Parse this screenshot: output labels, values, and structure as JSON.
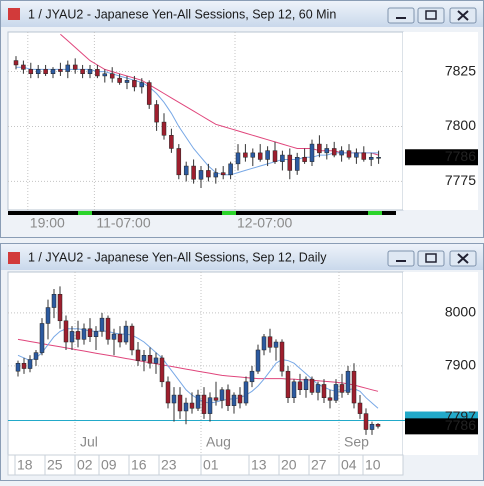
{
  "chart_data": [
    {
      "type": "candlestick",
      "title": "1 / JYAU2 - Japanese Yen-All Sessions, Sep 12, 60 Min",
      "categories": [
        null,
        null,
        "19:00",
        null,
        null,
        null,
        null,
        null,
        null,
        null,
        null,
        "11-07:00",
        null,
        null,
        null,
        null,
        null,
        null,
        null,
        null,
        null,
        null,
        null,
        null,
        null,
        null,
        null,
        null,
        null,
        null,
        "12-07:00",
        null,
        null,
        null,
        null,
        null,
        null,
        null,
        null,
        null,
        null,
        null,
        null,
        null,
        null,
        null,
        null,
        null,
        null,
        null
      ],
      "open": [
        7830,
        7828,
        7826,
        7824,
        7826,
        7824,
        7826,
        7825,
        7828,
        7826,
        7824,
        7826,
        7823,
        7824,
        7822,
        7820,
        7821,
        7818,
        7820,
        7810,
        7802,
        7796,
        7790,
        7778,
        7782,
        7776,
        7780,
        7777,
        7779,
        7778,
        7783,
        7788,
        7786,
        7788,
        7785,
        7789,
        7784,
        7787,
        7780,
        7786,
        7784,
        7792,
        7788,
        7790,
        7787,
        7789,
        7786,
        7788,
        7785,
        7786
      ],
      "high": [
        7832,
        7830,
        7829,
        7828,
        7828,
        7827,
        7829,
        7830,
        7831,
        7828,
        7828,
        7828,
        7826,
        7827,
        7824,
        7823,
        7823,
        7822,
        7821,
        7812,
        7806,
        7799,
        7792,
        7784,
        7785,
        7782,
        7783,
        7781,
        7782,
        7784,
        7792,
        7792,
        7790,
        7792,
        7791,
        7793,
        7789,
        7790,
        7788,
        7790,
        7794,
        7796,
        7792,
        7793,
        7791,
        7792,
        7790,
        7791,
        7788,
        7789
      ],
      "low": [
        7826,
        7824,
        7822,
        7822,
        7823,
        7822,
        7823,
        7822,
        7824,
        7822,
        7822,
        7822,
        7820,
        7820,
        7819,
        7817,
        7816,
        7815,
        7808,
        7798,
        7794,
        7788,
        7776,
        7775,
        7774,
        7772,
        7775,
        7774,
        7776,
        7776,
        7780,
        7784,
        7782,
        7784,
        7782,
        7783,
        7780,
        7776,
        7778,
        7783,
        7782,
        7786,
        7785,
        7786,
        7784,
        7785,
        7783,
        7784,
        7782,
        7783
      ],
      "close": [
        7828,
        7826,
        7824,
        7826,
        7824,
        7826,
        7825,
        7828,
        7826,
        7824,
        7826,
        7823,
        7824,
        7822,
        7820,
        7821,
        7818,
        7820,
        7810,
        7802,
        7796,
        7790,
        7778,
        7782,
        7776,
        7780,
        7777,
        7779,
        7778,
        7783,
        7788,
        7786,
        7788,
        7785,
        7789,
        7784,
        7787,
        7780,
        7786,
        7784,
        7792,
        7788,
        7790,
        7787,
        7789,
        7786,
        7788,
        7785,
        7786,
        7786
      ],
      "up_color": "#2c5aa0",
      "down_color": "#9e1f2e",
      "series": [
        {
          "color": "#e0467c",
          "values": [
            null,
            null,
            null,
            null,
            null,
            null,
            7842,
            7839,
            7836,
            7833,
            7830,
            7828,
            7826,
            7825,
            7824,
            7823,
            7822,
            7821,
            7819,
            7817,
            7815,
            7813,
            7811,
            7809,
            7807,
            7805,
            7803,
            7801,
            7800,
            7799,
            7798,
            7797,
            7796,
            7795,
            7794,
            7793,
            7792,
            7791,
            7790,
            7790,
            7790,
            7789,
            7789,
            7789,
            7788,
            7788,
            7788,
            7788,
            7788,
            7787
          ]
        },
        {
          "color": "#78a8e6",
          "values": [
            7827,
            7827,
            7826,
            7826,
            7826,
            7826,
            7826,
            7826,
            7826,
            7826,
            7826,
            7825,
            7825,
            7824,
            7823,
            7822,
            7821,
            7820,
            7818,
            7815,
            7811,
            7806,
            7800,
            7795,
            7790,
            7786,
            7782,
            7779,
            7778,
            7778,
            7779,
            7780,
            7781,
            7782,
            7783,
            7784,
            7785,
            7785,
            7785,
            7786,
            7786,
            7787,
            7787,
            7788,
            7788,
            7788,
            7788,
            7788,
            7788,
            7788
          ]
        }
      ],
      "ylim": [
        7762,
        7843
      ],
      "yticks": [
        7775,
        7800,
        7825
      ],
      "grid": true,
      "last_price": 7786
    },
    {
      "type": "candlestick",
      "title": "1 / JYAU2 - Japanese Yen-All Sessions, Sep 12, Daily",
      "categories": [
        "18",
        null,
        null,
        null,
        null,
        "25",
        null,
        null,
        null,
        null,
        "02",
        null,
        null,
        null,
        "09",
        null,
        null,
        null,
        null,
        "16",
        null,
        null,
        null,
        null,
        "23",
        null,
        null,
        null,
        null,
        null,
        null,
        "01",
        null,
        null,
        null,
        null,
        null,
        null,
        null,
        "13",
        null,
        null,
        null,
        null,
        "20",
        null,
        null,
        null,
        null,
        "27",
        null,
        null,
        null,
        null,
        "04",
        null,
        null,
        null,
        "10",
        null,
        null
      ],
      "months": [
        null,
        null,
        null,
        null,
        null,
        null,
        null,
        null,
        null,
        null,
        "Jul",
        null,
        null,
        null,
        null,
        null,
        null,
        null,
        null,
        null,
        null,
        null,
        null,
        null,
        null,
        null,
        null,
        null,
        null,
        null,
        null,
        "Aug",
        null,
        null,
        null,
        null,
        null,
        null,
        null,
        null,
        null,
        null,
        null,
        null,
        null,
        null,
        null,
        null,
        null,
        null,
        null,
        null,
        null,
        null,
        "Sep",
        null,
        null,
        null,
        null,
        null,
        null
      ],
      "open": [
        7890,
        7905,
        7895,
        7912,
        7925,
        7980,
        8010,
        8035,
        7985,
        7945,
        7965,
        7950,
        7970,
        7955,
        7965,
        7990,
        7950,
        7960,
        7945,
        7975,
        7930,
        7910,
        7920,
        7905,
        7915,
        7870,
        7830,
        7845,
        7815,
        7830,
        7820,
        7845,
        7810,
        7840,
        7835,
        7855,
        7825,
        7845,
        7830,
        7870,
        7890,
        7930,
        7955,
        7935,
        7945,
        7890,
        7840,
        7870,
        7855,
        7875,
        7850,
        7865,
        7840,
        7835,
        7865,
        7850,
        7890,
        7830,
        7810,
        7780,
        7790
      ],
      "high": [
        7910,
        7915,
        7920,
        7930,
        7990,
        8025,
        8045,
        8050,
        7995,
        7975,
        7985,
        7980,
        7990,
        7975,
        8000,
        7995,
        7970,
        7975,
        7985,
        7980,
        7945,
        7930,
        7935,
        7925,
        7920,
        7880,
        7860,
        7860,
        7840,
        7850,
        7855,
        7860,
        7850,
        7870,
        7860,
        7865,
        7850,
        7860,
        7880,
        7900,
        7940,
        7960,
        7970,
        7950,
        7950,
        7900,
        7875,
        7885,
        7880,
        7880,
        7870,
        7875,
        7855,
        7875,
        7885,
        7900,
        7905,
        7845,
        7820,
        7795,
        7792
      ],
      "low": [
        7880,
        7885,
        7888,
        7900,
        7920,
        7950,
        7990,
        7970,
        7930,
        7930,
        7935,
        7940,
        7945,
        7930,
        7955,
        7940,
        7920,
        7935,
        7940,
        7920,
        7900,
        7890,
        7895,
        7885,
        7860,
        7820,
        7795,
        7800,
        7790,
        7810,
        7815,
        7800,
        7795,
        7825,
        7820,
        7815,
        7810,
        7820,
        7825,
        7860,
        7885,
        7920,
        7925,
        7910,
        7880,
        7830,
        7830,
        7845,
        7840,
        7845,
        7835,
        7830,
        7820,
        7830,
        7840,
        7845,
        7820,
        7800,
        7770,
        7770,
        7782
      ],
      "close": [
        7905,
        7895,
        7912,
        7925,
        7980,
        8010,
        8035,
        7985,
        7945,
        7965,
        7950,
        7970,
        7955,
        7965,
        7990,
        7950,
        7960,
        7945,
        7975,
        7930,
        7910,
        7920,
        7905,
        7915,
        7870,
        7830,
        7845,
        7815,
        7830,
        7820,
        7845,
        7810,
        7840,
        7835,
        7855,
        7825,
        7845,
        7830,
        7870,
        7890,
        7930,
        7955,
        7935,
        7945,
        7890,
        7840,
        7870,
        7855,
        7875,
        7850,
        7865,
        7840,
        7835,
        7865,
        7850,
        7890,
        7830,
        7810,
        7780,
        7790,
        7786
      ],
      "up_color": "#2c5aa0",
      "down_color": "#9e1f2e",
      "series": [
        {
          "color": "#e0467c",
          "values": [
            7950,
            7948,
            7946,
            7944,
            7942,
            7940,
            7938,
            7936,
            7934,
            7932,
            7930,
            7928,
            7926,
            7924,
            7922,
            7920,
            7918,
            7916,
            7914,
            7912,
            7910,
            7908,
            7906,
            7904,
            7902,
            7900,
            7898,
            7896,
            7894,
            7892,
            7890,
            7888,
            7886,
            7884,
            7882,
            7881,
            7880,
            7879,
            7878,
            7877,
            7876,
            7876,
            7876,
            7876,
            7876,
            7875,
            7875,
            7874,
            7874,
            7873,
            7872,
            7871,
            7870,
            7869,
            7868,
            7866,
            7864,
            7861,
            7858,
            7855,
            7852
          ]
        },
        {
          "color": "#78a8e6",
          "values": [
            7920,
            7915,
            7910,
            7915,
            7925,
            7940,
            7955,
            7965,
            7970,
            7970,
            7970,
            7968,
            7966,
            7965,
            7966,
            7965,
            7962,
            7960,
            7960,
            7958,
            7952,
            7945,
            7935,
            7925,
            7915,
            7900,
            7885,
            7870,
            7855,
            7845,
            7838,
            7832,
            7830,
            7832,
            7835,
            7837,
            7838,
            7840,
            7845,
            7852,
            7862,
            7875,
            7890,
            7905,
            7912,
            7910,
            7905,
            7895,
            7885,
            7875,
            7865,
            7860,
            7855,
            7852,
            7852,
            7855,
            7857,
            7852,
            7840,
            7830,
            7820
          ]
        }
      ],
      "ylim": [
        7732,
        8077
      ],
      "yticks": [
        7900,
        8000
      ],
      "grid": true,
      "level": 7797,
      "level_color": "#22a9c9",
      "last_price": 7786
    }
  ]
}
